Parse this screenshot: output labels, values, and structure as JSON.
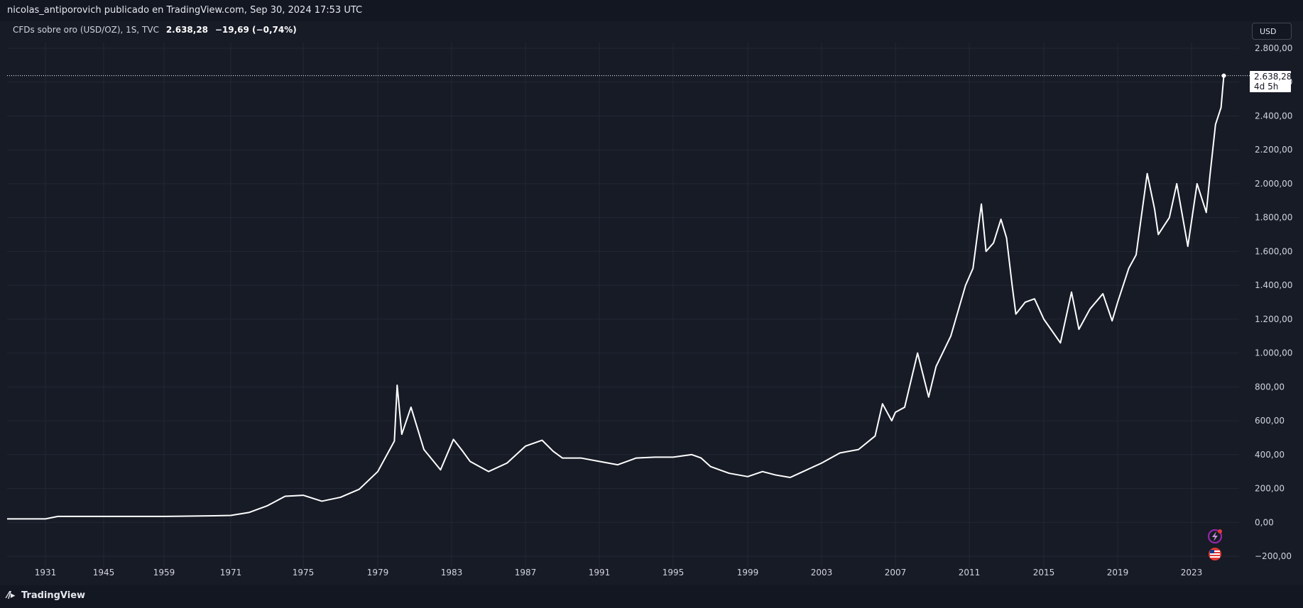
{
  "header": {
    "publisher_line": "nicolas_antiporovich publicado en TradingView.com, Sep 30, 2024 17:53 UTC"
  },
  "legend": {
    "symbol": "CFDs sobre oro (USD/OZ), 1S, TVC",
    "price": "2.638,28",
    "change": "−19,69 (−0,74%)"
  },
  "toolbar": {
    "currency": "USD"
  },
  "price_tag": {
    "value": "2.638,28",
    "countdown": "4d 5h"
  },
  "footer": {
    "brand": "TradingView"
  },
  "colors": {
    "background": "#171b26",
    "line": "#ffffff",
    "grid": "#232734",
    "tag_bg": "#ffffff",
    "badge_purple": "#9c27b0",
    "badge_red": "#e53935"
  },
  "icons": {
    "logo": "tradingview-logo-icon",
    "flash": "lightning-icon",
    "flag": "us-flag-icon"
  },
  "chart_data": {
    "type": "line",
    "title": "",
    "xlabel": "",
    "ylabel": "",
    "x_ticks": [
      "1931",
      "1945",
      "1959",
      "1971",
      "1975",
      "1979",
      "1983",
      "1987",
      "1991",
      "1995",
      "1999",
      "2003",
      "2007",
      "2011",
      "2015",
      "2019",
      "2023"
    ],
    "y_ticks": [
      "2.800,00",
      "2.600,00",
      "2.400,00",
      "2.200,00",
      "2.000,00",
      "1.800,00",
      "1.600,00",
      "1.400,00",
      "1.200,00",
      "1.000,00",
      "800,00",
      "600,00",
      "400,00",
      "200,00",
      "0,00",
      "−200,00"
    ],
    "ylim": [
      -200,
      2800
    ],
    "grid": true,
    "current_value": 2638.28,
    "series": [
      {
        "points": [
          [
            1931,
            20.67
          ],
          [
            1934,
            35
          ],
          [
            1945,
            35
          ],
          [
            1959,
            35
          ],
          [
            1968,
            39
          ],
          [
            1971,
            41
          ],
          [
            1972,
            58
          ],
          [
            1973,
            97
          ],
          [
            1974,
            154
          ],
          [
            1975,
            160
          ],
          [
            1976,
            125
          ],
          [
            1977,
            148
          ],
          [
            1978,
            195
          ],
          [
            1979,
            300
          ],
          [
            1979.9,
            480
          ],
          [
            1980.05,
            810
          ],
          [
            1980.3,
            520
          ],
          [
            1980.8,
            680
          ],
          [
            1981.5,
            430
          ],
          [
            1982.4,
            310
          ],
          [
            1983.1,
            490
          ],
          [
            1983.6,
            420
          ],
          [
            1984,
            360
          ],
          [
            1985,
            300
          ],
          [
            1986,
            350
          ],
          [
            1987,
            450
          ],
          [
            1987.9,
            485
          ],
          [
            1988.5,
            420
          ],
          [
            1989,
            380
          ],
          [
            1990,
            380
          ],
          [
            1991,
            360
          ],
          [
            1992,
            340
          ],
          [
            1993,
            380
          ],
          [
            1994,
            385
          ],
          [
            1995,
            385
          ],
          [
            1996,
            400
          ],
          [
            1996.5,
            380
          ],
          [
            1997,
            330
          ],
          [
            1998,
            290
          ],
          [
            1999,
            270
          ],
          [
            1999.8,
            300
          ],
          [
            2000.5,
            280
          ],
          [
            2001.3,
            265
          ],
          [
            2002,
            300
          ],
          [
            2003,
            350
          ],
          [
            2004,
            410
          ],
          [
            2005,
            430
          ],
          [
            2005.9,
            510
          ],
          [
            2006.3,
            700
          ],
          [
            2006.8,
            600
          ],
          [
            2007,
            650
          ],
          [
            2007.5,
            680
          ],
          [
            2008.2,
            1000
          ],
          [
            2008.8,
            740
          ],
          [
            2009.2,
            920
          ],
          [
            2010,
            1100
          ],
          [
            2010.8,
            1400
          ],
          [
            2011.2,
            1500
          ],
          [
            2011.65,
            1880
          ],
          [
            2011.9,
            1600
          ],
          [
            2012.3,
            1650
          ],
          [
            2012.7,
            1790
          ],
          [
            2013,
            1680
          ],
          [
            2013.3,
            1400
          ],
          [
            2013.5,
            1230
          ],
          [
            2014,
            1300
          ],
          [
            2014.5,
            1320
          ],
          [
            2015,
            1200
          ],
          [
            2015.9,
            1060
          ],
          [
            2016.5,
            1360
          ],
          [
            2016.9,
            1140
          ],
          [
            2017.5,
            1260
          ],
          [
            2018.2,
            1350
          ],
          [
            2018.7,
            1190
          ],
          [
            2019,
            1300
          ],
          [
            2019.6,
            1500
          ],
          [
            2020,
            1580
          ],
          [
            2020.6,
            2060
          ],
          [
            2021,
            1850
          ],
          [
            2021.2,
            1700
          ],
          [
            2021.8,
            1800
          ],
          [
            2022.2,
            2000
          ],
          [
            2022.8,
            1630
          ],
          [
            2023.3,
            2000
          ],
          [
            2023.8,
            1830
          ],
          [
            2024.0,
            2050
          ],
          [
            2024.3,
            2350
          ],
          [
            2024.6,
            2450
          ],
          [
            2024.75,
            2638.28
          ]
        ]
      }
    ]
  }
}
